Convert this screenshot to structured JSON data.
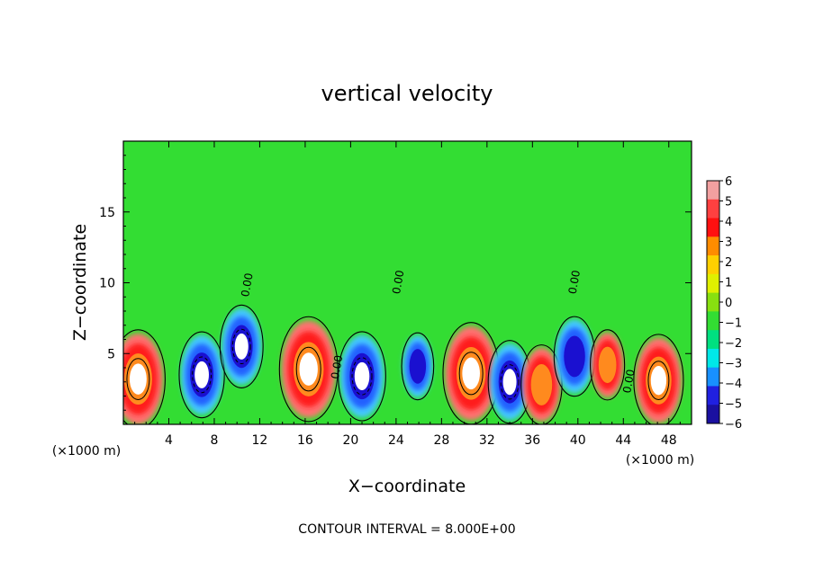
{
  "chart_data": {
    "type": "heatmap",
    "title": "vertical velocity",
    "xlabel": "X−coordinate",
    "ylabel": "Z−coordinate",
    "x_unit_left": "(×1000 m)",
    "x_unit_right": "(×1000 m)",
    "footer": "CONTOUR INTERVAL = 8.000E+00",
    "xlim": [
      0,
      50
    ],
    "ylim": [
      0,
      20
    ],
    "x_ticks": [
      4,
      8,
      12,
      16,
      20,
      24,
      28,
      32,
      36,
      40,
      44,
      48
    ],
    "y_ticks": [
      5,
      10,
      15
    ],
    "colorbar": {
      "ticks": [
        6,
        5,
        4,
        3,
        2,
        1,
        0,
        -1,
        -2,
        -3,
        -4,
        -5,
        -6
      ],
      "tick_labels": [
        "6",
        "5",
        "4",
        "3",
        "2",
        "1",
        "0",
        "−1",
        "−2",
        "−3",
        "−4",
        "−5",
        "−6"
      ],
      "range": [
        -6,
        6
      ]
    },
    "contour_labels": [
      {
        "text": "0.00",
        "x": 11.2,
        "z": 9.8
      },
      {
        "text": "0.00",
        "x": 19.1,
        "z": 4.0
      },
      {
        "text": "0.00",
        "x": 24.5,
        "z": 10.0
      },
      {
        "text": "0.00",
        "x": 40.0,
        "z": 10.0
      },
      {
        "text": "0.00",
        "x": 44.8,
        "z": 3.0
      }
    ],
    "cells": [
      {
        "x": 1.3,
        "z": 3.2,
        "value": 14,
        "label": "updraft"
      },
      {
        "x": 6.9,
        "z": 3.5,
        "value": -10,
        "label": "downdraft"
      },
      {
        "x": 10.4,
        "z": 5.5,
        "value": -9,
        "label": "downdraft"
      },
      {
        "x": 16.3,
        "z": 3.9,
        "value": 16,
        "label": "updraft"
      },
      {
        "x": 21.0,
        "z": 3.4,
        "value": -11,
        "label": "downdraft"
      },
      {
        "x": 25.9,
        "z": 4.1,
        "value": -4,
        "label": "downdraft"
      },
      {
        "x": 30.6,
        "z": 3.6,
        "value": 15,
        "label": "updraft"
      },
      {
        "x": 34.0,
        "z": 3.0,
        "value": -9,
        "label": "downdraft"
      },
      {
        "x": 36.8,
        "z": 2.8,
        "value": 8,
        "label": "updraft"
      },
      {
        "x": 39.7,
        "z": 4.8,
        "value": -8,
        "label": "downdraft"
      },
      {
        "x": 42.6,
        "z": 4.2,
        "value": 5,
        "label": "updraft"
      },
      {
        "x": 47.1,
        "z": 3.1,
        "value": 12,
        "label": "updraft"
      }
    ]
  }
}
